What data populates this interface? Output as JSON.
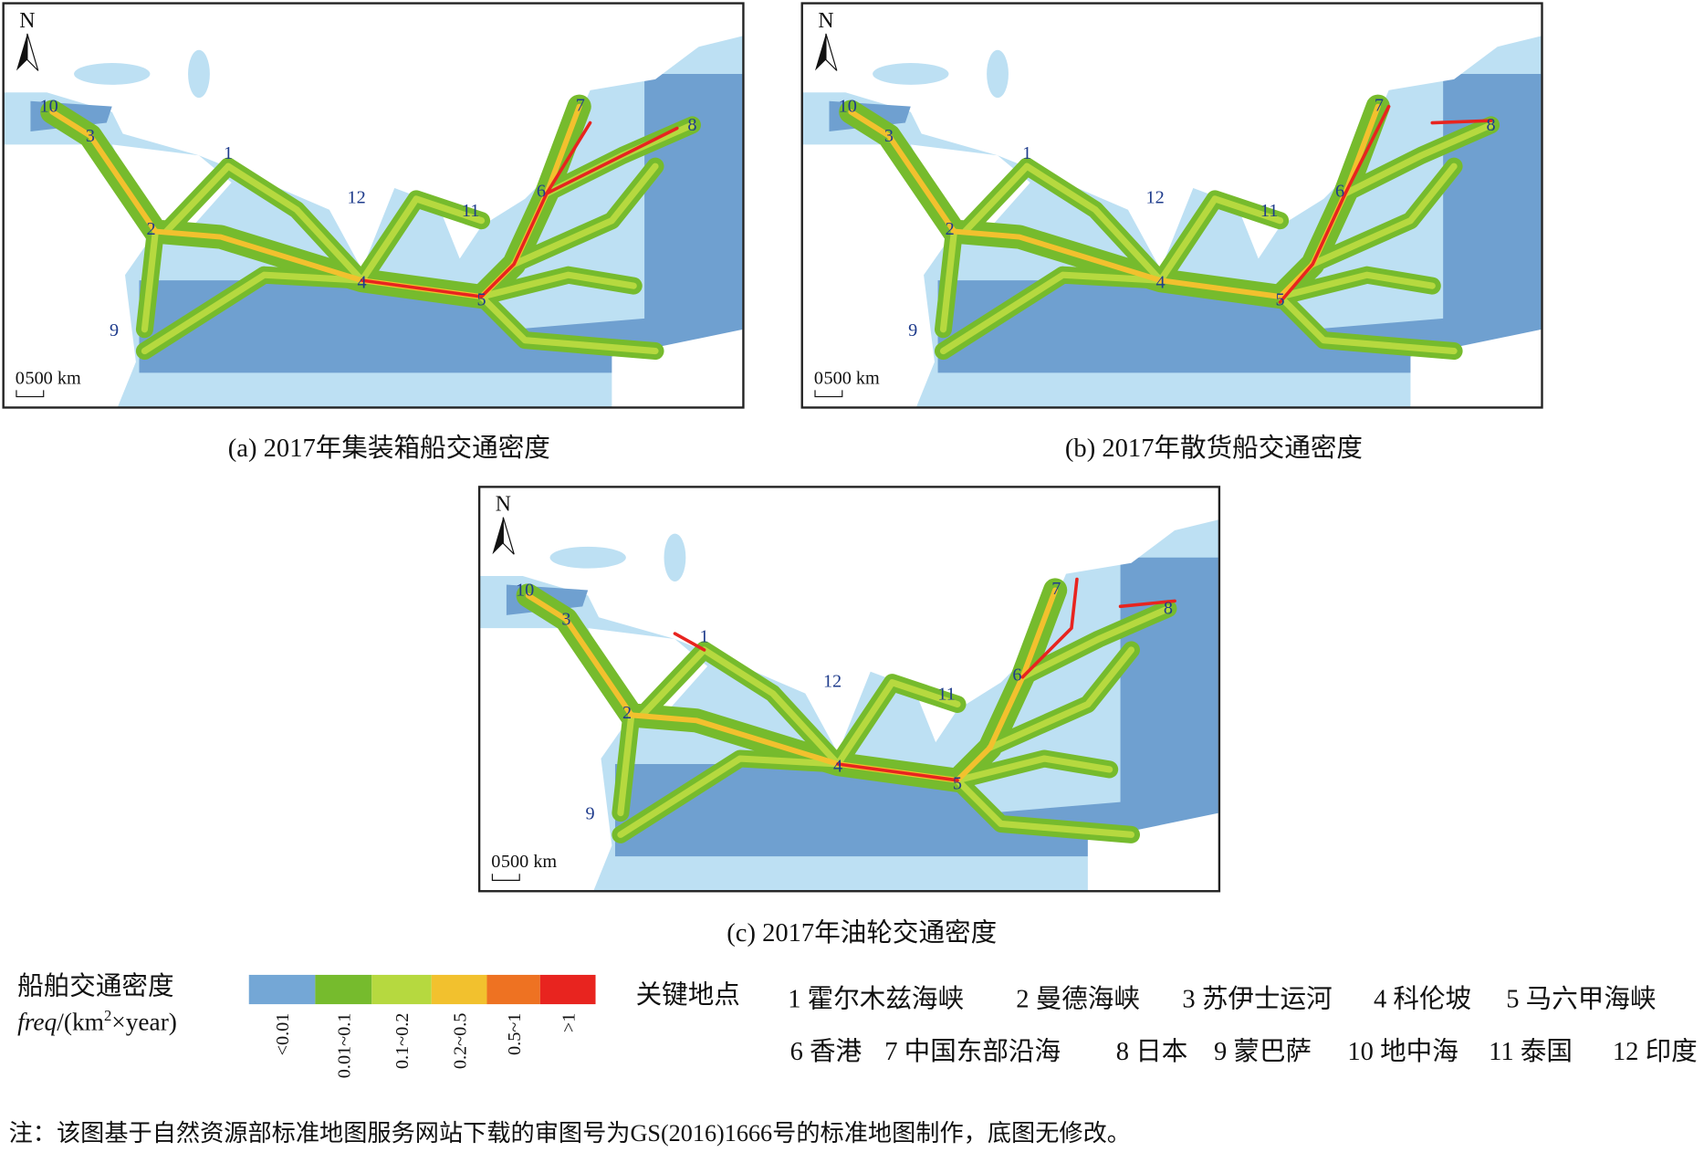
{
  "panels": [
    {
      "caption": "(a) 2017年集装箱船交通密度",
      "north": "N",
      "scale_zero": "0",
      "scale_label": "500 km",
      "labels": [
        "1",
        "2",
        "3",
        "4",
        "5",
        "6",
        "7",
        "8",
        "9",
        "10",
        "11",
        "12"
      ]
    },
    {
      "caption": "(b) 2017年散货船交通密度",
      "north": "N",
      "scale_zero": "0",
      "scale_label": "500 km",
      "labels": [
        "1",
        "2",
        "3",
        "4",
        "5",
        "6",
        "7",
        "8",
        "9",
        "10",
        "11",
        "12"
      ]
    },
    {
      "caption": "(c) 2017年油轮交通密度",
      "north": "N",
      "scale_zero": "0",
      "scale_label": "500 km",
      "labels": [
        "1",
        "2",
        "3",
        "4",
        "5",
        "6",
        "7",
        "8",
        "9",
        "10",
        "11",
        "12"
      ]
    }
  ],
  "legend": {
    "title": "船舶交通密度",
    "unit": [
      "freq",
      "/(km",
      "2",
      "×year)"
    ],
    "classes": [
      {
        "label": "<0.01",
        "color": "#74a7d6"
      },
      {
        "label": "0.01~0.1",
        "color": "#76bb2d"
      },
      {
        "label": "0.1~0.2",
        "color": "#b6d93f"
      },
      {
        "label": "0.2~0.5",
        "color": "#f2c12e"
      },
      {
        "label": "0.5~1",
        "color": "#ee7222"
      },
      {
        "label": ">1",
        "color": "#e8241f"
      }
    ]
  },
  "key_places": {
    "title": "关键地点",
    "items": [
      "1 霍尔木兹海峡",
      "2 曼德海峡",
      "3 苏伊士运河",
      "4 科伦坡",
      "5 马六甲海峡",
      "6 香港",
      "7 中国东部沿海",
      "8 日本",
      "9 蒙巴萨",
      "10 地中海",
      "11 泰国",
      "12 印度"
    ]
  },
  "note": "注：该图基于自然资源部标准地图服务网站下载的审图号为GS(2016)1666号的标准地图制作，底图无修改。"
}
